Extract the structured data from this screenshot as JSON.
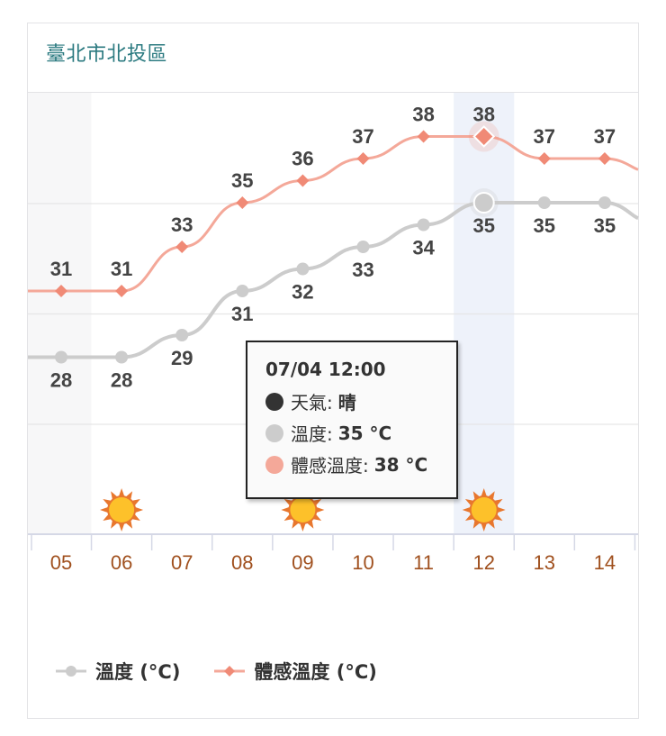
{
  "card": {
    "title": "臺北市北投區"
  },
  "tooltip": {
    "title": "07/04 12:00",
    "rows": [
      {
        "label": "天氣:",
        "value": "晴",
        "color": "#333333"
      },
      {
        "label": "溫度:",
        "value": "35 °C",
        "color": "#cccccc"
      },
      {
        "label": "體感溫度:",
        "value": "38 °C",
        "color": "#f4a899"
      }
    ]
  },
  "legend": [
    {
      "label": "溫度 (°C)",
      "color": "#cccccc",
      "marker": "circle"
    },
    {
      "label": "體感溫度 (°C)",
      "color": "#f08a76",
      "marker": "diamond"
    }
  ],
  "colors": {
    "temp": "#cccccc",
    "feels": "#f4a899",
    "feels_marker": "#f08a76",
    "label": "#444444",
    "axis_label": "#a0501e",
    "highlight_band": "#eef2fa",
    "night_band": "#f7f7f8",
    "grid": "#e6e6e6",
    "sun_core": "#fdc12a",
    "sun_rays": "#e8772e"
  },
  "chart_data": {
    "type": "line",
    "title": "臺北市北投區",
    "xlabel": "",
    "ylabel": "°C",
    "categories": [
      "05",
      "06",
      "07",
      "08",
      "09",
      "10",
      "11",
      "12",
      "13",
      "14"
    ],
    "series": [
      {
        "name": "溫度 (°C)",
        "values": [
          28,
          28,
          29,
          31,
          32,
          33,
          34,
          35,
          35,
          35
        ],
        "marker": "circle"
      },
      {
        "name": "體感溫度 (°C)",
        "values": [
          31,
          31,
          33,
          35,
          36,
          37,
          38,
          38,
          37,
          37
        ],
        "marker": "diamond"
      }
    ],
    "weather_icons": {
      "06": "sunny",
      "09": "sunny",
      "12": "sunny"
    },
    "highlighted_category": "12",
    "grid": true,
    "legend_position": "bottom",
    "ylim": [
      20,
      40
    ]
  }
}
